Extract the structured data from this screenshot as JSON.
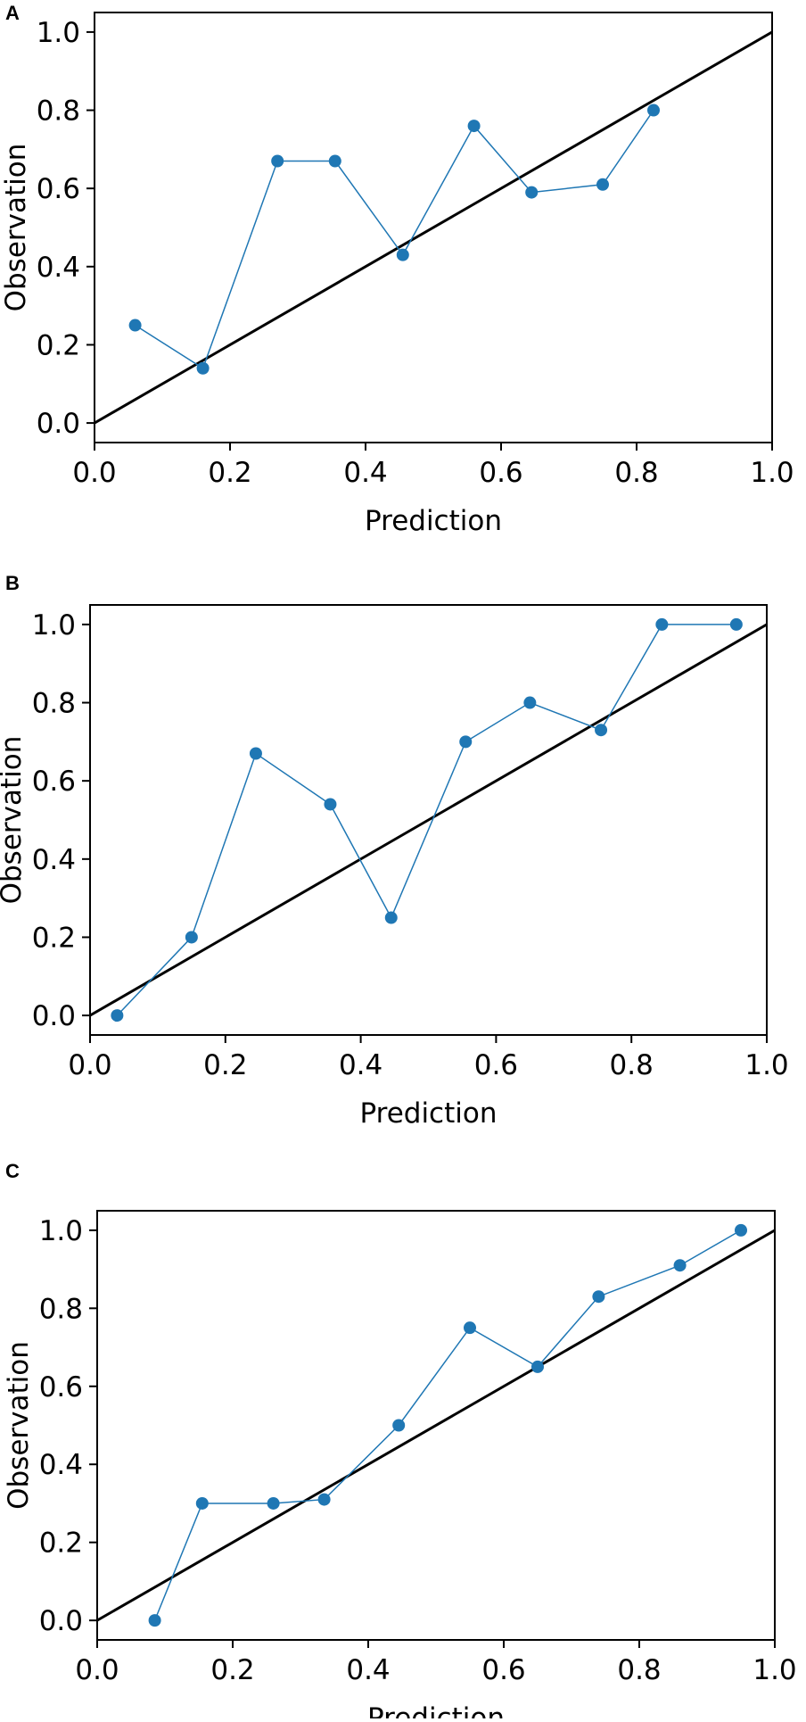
{
  "chart_data": [
    {
      "panel": "A",
      "type": "line",
      "xlabel": "Prediction",
      "ylabel": "Observation",
      "xlim": [
        0.0,
        1.0
      ],
      "ylim": [
        -0.05,
        1.05
      ],
      "xticks": [
        "0.0",
        "0.2",
        "0.4",
        "0.6",
        "0.8",
        "1.0"
      ],
      "yticks": [
        "0.0",
        "0.2",
        "0.4",
        "0.6",
        "0.8",
        "1.0"
      ],
      "grid": false,
      "reference_line": {
        "x": [
          0.0,
          1.0
        ],
        "y": [
          0.0,
          1.0
        ],
        "color": "#000000"
      },
      "series": [
        {
          "color": "#1f77b4",
          "x": [
            0.06,
            0.16,
            0.27,
            0.355,
            0.455,
            0.56,
            0.645,
            0.75,
            0.825
          ],
          "y": [
            0.25,
            0.14,
            0.67,
            0.67,
            0.43,
            0.76,
            0.59,
            0.61,
            0.8
          ]
        }
      ]
    },
    {
      "panel": "B",
      "type": "line",
      "xlabel": "Prediction",
      "ylabel": "Observation",
      "xlim": [
        0.0,
        1.0
      ],
      "ylim": [
        -0.05,
        1.05
      ],
      "xticks": [
        "0.0",
        "0.2",
        "0.4",
        "0.6",
        "0.8",
        "1.0"
      ],
      "yticks": [
        "0.0",
        "0.2",
        "0.4",
        "0.6",
        "0.8",
        "1.0"
      ],
      "grid": false,
      "reference_line": {
        "x": [
          0.0,
          1.0
        ],
        "y": [
          0.0,
          1.0
        ],
        "color": "#000000"
      },
      "series": [
        {
          "color": "#1f77b4",
          "x": [
            0.04,
            0.15,
            0.245,
            0.355,
            0.445,
            0.555,
            0.65,
            0.755,
            0.845,
            0.955
          ],
          "y": [
            0.0,
            0.2,
            0.67,
            0.54,
            0.25,
            0.7,
            0.8,
            0.73,
            1.0,
            1.0
          ]
        }
      ]
    },
    {
      "panel": "C",
      "type": "line",
      "xlabel": "Prediction",
      "ylabel": "Observation",
      "xlim": [
        0.0,
        1.0
      ],
      "ylim": [
        -0.05,
        1.05
      ],
      "xticks": [
        "0.0",
        "0.2",
        "0.4",
        "0.6",
        "0.8",
        "1.0"
      ],
      "yticks": [
        "0.0",
        "0.2",
        "0.4",
        "0.6",
        "0.8",
        "1.0"
      ],
      "grid": false,
      "reference_line": {
        "x": [
          0.0,
          1.0
        ],
        "y": [
          0.0,
          1.0
        ],
        "color": "#000000"
      },
      "series": [
        {
          "color": "#1f77b4",
          "x": [
            0.085,
            0.155,
            0.26,
            0.335,
            0.445,
            0.55,
            0.65,
            0.74,
            0.86,
            0.95
          ],
          "y": [
            0.0,
            0.3,
            0.3,
            0.31,
            0.5,
            0.75,
            0.65,
            0.83,
            0.91,
            1.0
          ]
        }
      ]
    }
  ]
}
